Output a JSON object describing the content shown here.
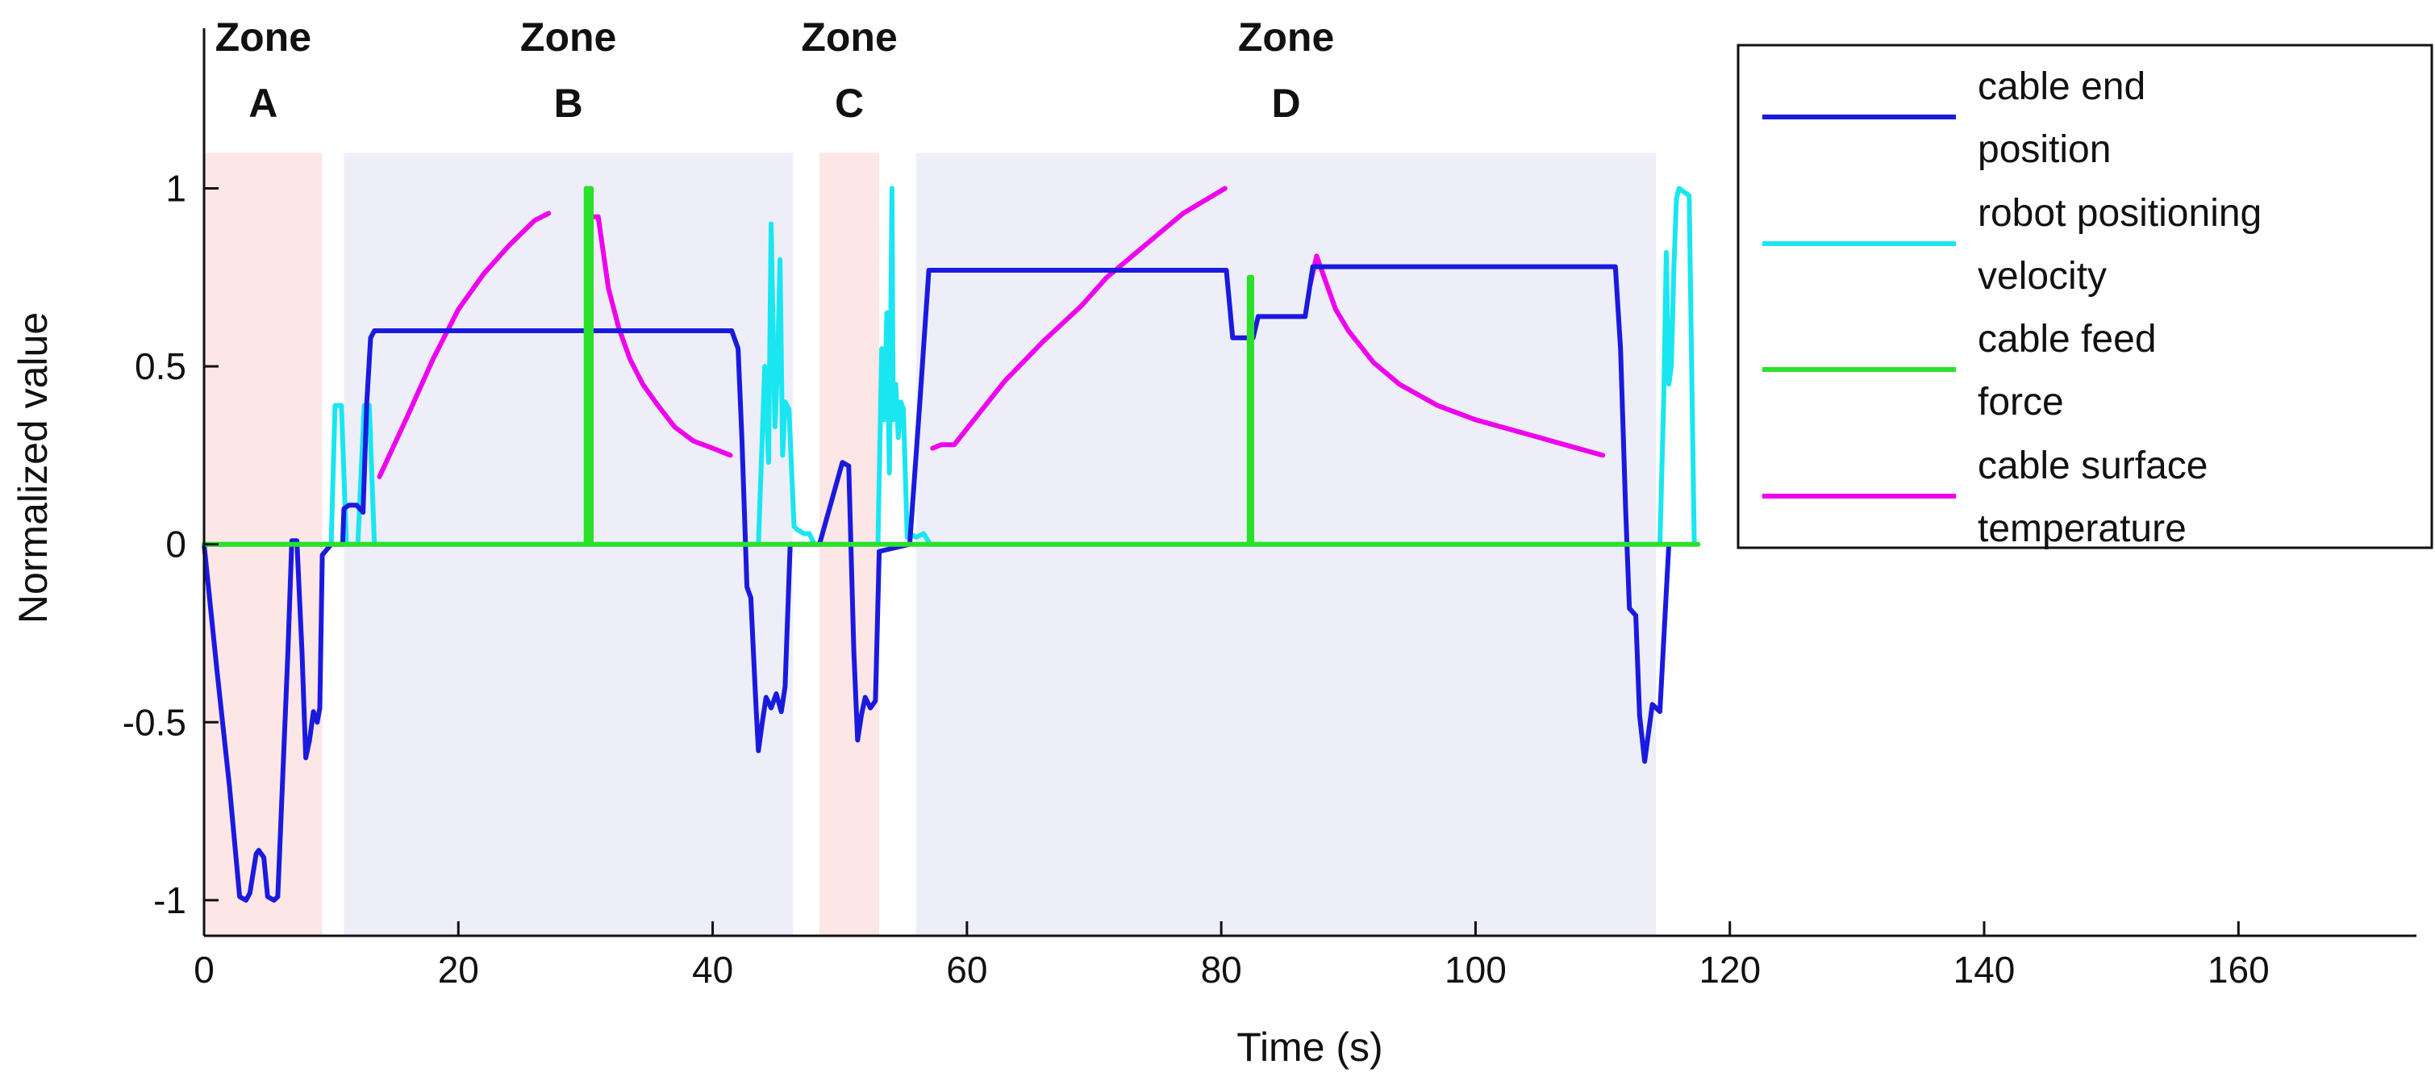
{
  "chart_data": {
    "type": "line",
    "title": "",
    "xlabel": "Time (s)",
    "ylabel": "Normalized value",
    "xlim": [
      0,
      174
    ],
    "ylim": [
      -1.1,
      1.45
    ],
    "xticks": [
      0,
      20,
      40,
      60,
      80,
      100,
      120,
      140,
      160
    ],
    "xtick_labels": [
      "0",
      "20",
      "40",
      "60",
      "80",
      "100",
      "120",
      "140",
      "160"
    ],
    "yticks": [
      -1,
      -0.5,
      0,
      0.5,
      1
    ],
    "ytick_labels": [
      "-1",
      "-0.5",
      "0",
      "0.5",
      "1"
    ],
    "grid": false,
    "legend_position": "top-right",
    "zones": [
      {
        "line1": "Zone",
        "line2": "A",
        "start": 0,
        "end": 9.3,
        "color": "#fde6e6"
      },
      {
        "line1": "Zone",
        "line2": "B",
        "start": 11,
        "end": 46.3,
        "color": "#eeeef9"
      },
      {
        "line1": "Zone",
        "line2": "C",
        "start": 48.4,
        "end": 53.1,
        "color": "#fde6e6"
      },
      {
        "line1": "Zone",
        "line2": "D",
        "start": 56,
        "end": 114.2,
        "color": "#eeeef9"
      }
    ],
    "zone_band_top": 1.1,
    "series": [
      {
        "name": "cable end position",
        "legend_line1": "cable end",
        "legend_line2": "position",
        "color": "#1a1adf",
        "x": [
          0,
          1,
          2,
          2.8,
          3.3,
          3.6,
          4.1,
          4.3,
          4.7,
          5,
          5.5,
          5.8,
          6.6,
          6.9,
          7.3,
          7.7,
          8,
          8.3,
          8.6,
          8.9,
          9.1,
          9.3,
          10,
          10.9,
          11,
          11.4,
          12,
          12.5,
          12.8,
          13.1,
          13.4,
          41.5,
          42,
          42.3,
          42.7,
          43,
          43.4,
          43.6,
          43.9,
          44.2,
          44.6,
          45,
          45.4,
          45.7,
          46.1,
          48.4,
          50.2,
          50.7,
          51.1,
          51.4,
          51.7,
          52,
          52.4,
          52.8,
          53.1,
          55.5,
          56.3,
          57,
          80.4,
          80.9,
          82.5,
          82.9,
          86.6,
          87.2,
          111,
          111.4,
          111.8,
          112.1,
          112.6,
          112.9,
          113.3,
          113.9,
          114.5,
          115.2
        ],
        "y": [
          0,
          -0.35,
          -0.68,
          -0.99,
          -1.0,
          -0.98,
          -0.87,
          -0.86,
          -0.88,
          -0.99,
          -1.0,
          -0.99,
          -0.3,
          0.01,
          0.01,
          -0.3,
          -0.6,
          -0.55,
          -0.47,
          -0.5,
          -0.46,
          -0.03,
          0,
          0.0,
          0.1,
          0.11,
          0.11,
          0.09,
          0.4,
          0.58,
          0.6,
          0.6,
          0.55,
          0.3,
          -0.12,
          -0.15,
          -0.45,
          -0.58,
          -0.5,
          -0.43,
          -0.46,
          -0.42,
          -0.47,
          -0.4,
          0.0,
          0.0,
          0.23,
          0.22,
          -0.3,
          -0.55,
          -0.48,
          -0.43,
          -0.46,
          -0.44,
          -0.02,
          0,
          0.4,
          0.77,
          0.77,
          0.58,
          0.58,
          0.64,
          0.64,
          0.78,
          0.78,
          0.55,
          0.1,
          -0.18,
          -0.2,
          -0.48,
          -0.61,
          -0.45,
          -0.47,
          0.0
        ]
      },
      {
        "name": "robot positioning velocity",
        "legend_line1": "robot positioning",
        "legend_line2": "velocity",
        "color": "#19e6f0",
        "x": [
          0,
          10,
          10.3,
          10.8,
          11.2,
          11.6,
          12.1,
          12.6,
          13,
          13.4,
          13.8,
          43.6,
          44.1,
          44.4,
          44.6,
          44.9,
          45.1,
          45.3,
          45.5,
          45.7,
          46,
          46.4,
          46.7,
          47.2,
          47.6,
          48,
          53,
          53.3,
          53.5,
          53.7,
          53.9,
          54.1,
          54.2,
          54.4,
          54.6,
          54.8,
          55,
          55.3,
          55.5,
          56,
          56.6,
          57.1,
          114.5,
          114.8,
          115,
          115.2,
          115.4,
          115.6,
          115.8,
          116,
          116.4,
          116.8,
          117.2
        ],
        "y": [
          0,
          0,
          0.39,
          0.39,
          0.0,
          0.0,
          0.0,
          0.39,
          0.39,
          0.0,
          0.0,
          0.0,
          0.5,
          0.23,
          0.9,
          0.33,
          0.5,
          0.8,
          0.25,
          0.4,
          0.38,
          0.05,
          0.04,
          0.03,
          0.03,
          0.0,
          0.0,
          0.55,
          0.35,
          0.65,
          0.2,
          1.0,
          0.35,
          0.45,
          0.3,
          0.4,
          0.38,
          0.02,
          0.03,
          0.02,
          0.03,
          0.0,
          0.0,
          0.4,
          0.82,
          0.45,
          0.5,
          0.78,
          0.97,
          1.0,
          0.99,
          0.98,
          0.0
        ]
      },
      {
        "name": "cable feed force",
        "legend_line1": "cable feed",
        "legend_line2": "force",
        "color": "#2ae02a",
        "x": [
          0,
          30.05,
          30.05,
          30.15,
          30.15,
          30.35,
          30.35,
          30.45,
          30.45,
          82.2,
          82.2,
          82.4,
          82.4,
          117.5
        ],
        "y": [
          0,
          0,
          1.0,
          1.0,
          0,
          0,
          1.0,
          1.0,
          0,
          0,
          0.75,
          0.75,
          0,
          0
        ]
      },
      {
        "name": "cable surface temperature",
        "legend_line1": "cable surface",
        "legend_line2": "temperature",
        "color": "#ee00ee",
        "segments": [
          {
            "x": [
              13.8,
              16,
              18,
              20,
              22,
              24,
              26,
              27.1
            ],
            "y": [
              0.19,
              0.36,
              0.52,
              0.66,
              0.76,
              0.84,
              0.91,
              0.93
            ]
          },
          {
            "x": [
              30.5,
              31,
              31.8,
              32.6,
              33.5,
              34.5,
              35.7,
              37,
              38.5,
              40,
              41.4
            ],
            "y": [
              0.92,
              0.92,
              0.72,
              0.61,
              0.52,
              0.45,
              0.39,
              0.33,
              0.29,
              0.27,
              0.25
            ]
          },
          {
            "x": [
              57.3,
              58,
              59,
              61,
              63,
              66,
              69,
              71,
              74,
              77,
              80.3
            ],
            "y": [
              0.27,
              0.28,
              0.28,
              0.37,
              0.46,
              0.57,
              0.67,
              0.75,
              0.84,
              0.93,
              1.0
            ]
          },
          {
            "x": [
              87.0,
              87.5,
              88.2,
              89,
              90,
              92,
              94,
              97,
              100,
              104,
              107,
              110
            ],
            "y": [
              0.73,
              0.81,
              0.74,
              0.66,
              0.6,
              0.51,
              0.45,
              0.39,
              0.35,
              0.31,
              0.28,
              0.25
            ]
          }
        ]
      }
    ]
  }
}
